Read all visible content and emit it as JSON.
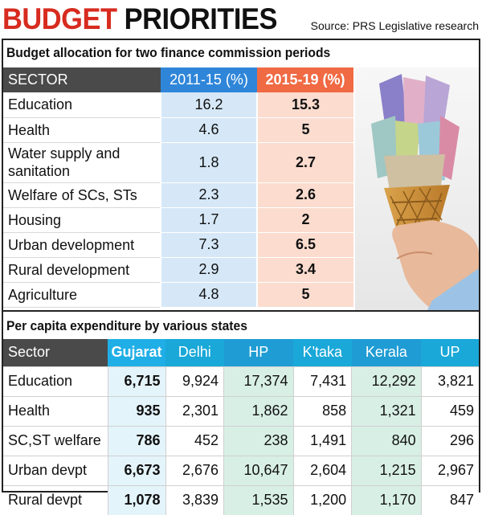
{
  "header": {
    "title_accent": "BUDGET",
    "title_rest": " PRIORITIES",
    "source": "Source: PRS Legislative research"
  },
  "chart_data": [
    {
      "type": "table",
      "title": "Budget allocation for two finance commission periods",
      "columns": [
        "SECTOR",
        "2011-15 (%)",
        "2015-19 (%)"
      ],
      "rows": [
        [
          "Education",
          "16.2",
          "15.3"
        ],
        [
          "Health",
          "4.6",
          "5"
        ],
        [
          "Water supply and sanitation",
          "1.8",
          "2.7"
        ],
        [
          "Welfare of SCs, STs",
          "2.3",
          "2.6"
        ],
        [
          "Housing",
          "1.7",
          "2"
        ],
        [
          "Urban development",
          "7.3",
          "6.5"
        ],
        [
          "Rural development",
          "2.9",
          "3.4"
        ],
        [
          "Agriculture",
          "4.8",
          "5"
        ]
      ]
    },
    {
      "type": "table",
      "title": "Per capita expenditure by various states",
      "columns": [
        "Sector",
        "Gujarat",
        "Delhi",
        "HP",
        "K'taka",
        "Kerala",
        "UP"
      ],
      "rows": [
        [
          "Education",
          "6,715",
          "9,924",
          "17,374",
          "7,431",
          "12,292",
          "3,821"
        ],
        [
          "Health",
          "935",
          "2,301",
          "1,862",
          "858",
          "1,321",
          "459"
        ],
        [
          "SC,ST welfare",
          "786",
          "452",
          "238",
          "1,491",
          "840",
          "296"
        ],
        [
          "Urban devpt",
          "6,673",
          "2,676",
          "10,647",
          "2,604",
          "1,215",
          "2,967"
        ],
        [
          "Rural devpt",
          "1,078",
          "3,839",
          "1,535",
          "1,200",
          "1,170",
          "847"
        ]
      ]
    }
  ],
  "illustration": {
    "icon": "ice-cream-cone-with-currency-notes-icon"
  }
}
